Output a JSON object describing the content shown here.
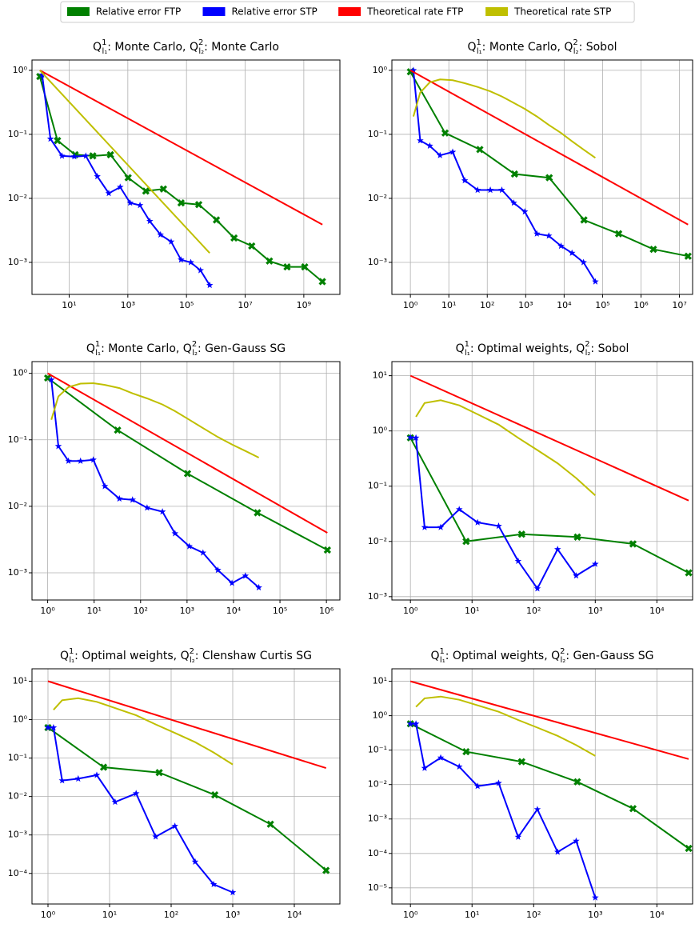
{
  "legend": {
    "position": "upper center",
    "entries": [
      {
        "name": "Relative error FTP",
        "color": "#008000"
      },
      {
        "name": "Relative error STP",
        "color": "#0000ff"
      },
      {
        "name": "Theoretical rate FTP",
        "color": "#ff0000"
      },
      {
        "name": "Theoretical rate STP",
        "color": "#bfbf00"
      }
    ]
  },
  "chart_data": [
    {
      "type": "line",
      "xscale": "log",
      "yscale": "log",
      "grid": true,
      "title": [
        {
          "text": "Q"
        },
        {
          "sup": "1",
          "sub": "l₁"
        },
        {
          "text": ": Monte Carlo, "
        },
        {
          "text": "Q"
        },
        {
          "sup": "2",
          "sub": "l₂"
        },
        {
          "text": ": Monte Carlo"
        }
      ],
      "xlim": [
        0.54,
        17000000000
      ],
      "ylim": [
        0.000316,
        1.45
      ],
      "xticks": [
        {
          "value": 10,
          "label": "10¹"
        },
        {
          "value": 1000,
          "label": "10³"
        },
        {
          "value": 100000,
          "label": "10⁵"
        },
        {
          "value": 10000000,
          "label": "10⁷"
        },
        {
          "value": 1000000000,
          "label": "10⁹"
        }
      ],
      "yticks": [
        {
          "value": 1,
          "label": "10⁰"
        },
        {
          "value": 0.1,
          "label": "10⁻¹"
        },
        {
          "value": 0.01,
          "label": "10⁻²"
        },
        {
          "value": 0.001,
          "label": "10⁻³"
        }
      ],
      "series": [
        {
          "marker": "X",
          "x": [
            1,
            4,
            16,
            64,
            256,
            1024,
            4096,
            16384,
            65536,
            262144,
            1048576,
            4194304,
            16777216,
            67108864,
            268435456,
            1073741824,
            4294967296
          ],
          "values": [
            0.8,
            0.08,
            0.048,
            0.046,
            0.048,
            0.021,
            0.013,
            0.014,
            0.0085,
            0.008,
            0.0046,
            0.0024,
            0.0018,
            0.00105,
            0.00085,
            0.00085,
            0.0005
          ]
        },
        {
          "marker": "*",
          "x": [
            1.2,
            2.3,
            5.7,
            15,
            37,
            91,
            224,
            550,
            1200,
            2600,
            5600,
            13000,
            30000,
            65000,
            140000,
            300000,
            620000
          ],
          "values": [
            0.85,
            0.085,
            0.046,
            0.045,
            0.046,
            0.022,
            0.012,
            0.015,
            0.0085,
            0.0078,
            0.0044,
            0.0027,
            0.0021,
            0.0011,
            0.001,
            0.00075,
            0.00044
          ]
        },
        {
          "x": [
            1,
            4294967296
          ],
          "values": [
            1,
            0.0039
          ]
        },
        {
          "x": [
            1,
            620000
          ],
          "values": [
            1,
            0.0014
          ]
        }
      ]
    },
    {
      "type": "line",
      "xscale": "log",
      "yscale": "log",
      "grid": true,
      "title": [
        {
          "text": "Q"
        },
        {
          "sup": "1",
          "sub": "l₁"
        },
        {
          "text": ": Monte Carlo, "
        },
        {
          "text": "Q"
        },
        {
          "sup": "2",
          "sub": "l₂"
        },
        {
          "text": ": Sobol"
        }
      ],
      "xlim": [
        0.33,
        22000000
      ],
      "ylim": [
        0.000316,
        1.45
      ],
      "xticks": [
        {
          "value": 1,
          "label": "10⁰"
        },
        {
          "value": 10,
          "label": "10¹"
        },
        {
          "value": 100,
          "label": "10²"
        },
        {
          "value": 1000,
          "label": "10³"
        },
        {
          "value": 10000,
          "label": "10⁴"
        },
        {
          "value": 100000,
          "label": "10⁵"
        },
        {
          "value": 1000000,
          "label": "10⁶"
        },
        {
          "value": 10000000,
          "label": "10⁷"
        }
      ],
      "yticks": [
        {
          "value": 1,
          "label": "10⁰"
        },
        {
          "value": 0.1,
          "label": "10⁻¹"
        },
        {
          "value": 0.01,
          "label": "10⁻²"
        },
        {
          "value": 0.001,
          "label": "10⁻³"
        }
      ],
      "series": [
        {
          "marker": "X",
          "x": [
            1,
            8,
            64,
            512,
            4096,
            32768,
            262144,
            2097152,
            16777216
          ],
          "values": [
            0.95,
            0.105,
            0.058,
            0.024,
            0.021,
            0.0046,
            0.0028,
            0.0016,
            0.00125
          ]
        },
        {
          "marker": "*",
          "x": [
            1.2,
            1.8,
            3.2,
            5.9,
            12.6,
            26,
            56,
            120,
            240,
            490,
            950,
            1950,
            4000,
            8300,
            16000,
            32000,
            65000
          ],
          "values": [
            1.0,
            0.08,
            0.066,
            0.047,
            0.053,
            0.019,
            0.0135,
            0.0135,
            0.0135,
            0.0085,
            0.0062,
            0.0028,
            0.0026,
            0.0018,
            0.0014,
            0.001,
            0.0005
          ]
        },
        {
          "x": [
            1,
            16777216
          ],
          "values": [
            1,
            0.0039
          ]
        },
        {
          "x": [
            1.2,
            1.8,
            3.2,
            5.9,
            12.6,
            26,
            56,
            120,
            240,
            490,
            950,
            1950,
            4000,
            8300,
            16000,
            32000,
            65000
          ],
          "values": [
            0.19,
            0.45,
            0.65,
            0.72,
            0.7,
            0.63,
            0.55,
            0.47,
            0.39,
            0.31,
            0.25,
            0.19,
            0.14,
            0.105,
            0.078,
            0.058,
            0.043
          ]
        }
      ]
    },
    {
      "type": "line",
      "xscale": "log",
      "yscale": "log",
      "grid": true,
      "title": [
        {
          "text": "Q"
        },
        {
          "sup": "1",
          "sub": "l₁"
        },
        {
          "text": ": Monte Carlo, "
        },
        {
          "text": "Q"
        },
        {
          "sup": "2",
          "sub": "l₂"
        },
        {
          "text": ": Gen-Gauss SG"
        }
      ],
      "xlim": [
        0.46,
        1950000
      ],
      "ylim": [
        0.00039,
        1.5
      ],
      "xticks": [
        {
          "value": 1,
          "label": "10⁰"
        },
        {
          "value": 10,
          "label": "10¹"
        },
        {
          "value": 100,
          "label": "10²"
        },
        {
          "value": 1000,
          "label": "10³"
        },
        {
          "value": 10000,
          "label": "10⁴"
        },
        {
          "value": 100000,
          "label": "10⁵"
        },
        {
          "value": 1000000,
          "label": "10⁶"
        }
      ],
      "yticks": [
        {
          "value": 1,
          "label": "10⁰"
        },
        {
          "value": 0.1,
          "label": "10⁻¹"
        },
        {
          "value": 0.01,
          "label": "10⁻²"
        },
        {
          "value": 0.001,
          "label": "10⁻³"
        }
      ],
      "series": [
        {
          "marker": "X",
          "x": [
            1,
            32,
            1024,
            32768,
            1048576
          ],
          "values": [
            0.85,
            0.14,
            0.031,
            0.008,
            0.0022
          ]
        },
        {
          "marker": "*",
          "x": [
            1.2,
            1.7,
            2.8,
            5.1,
            9.6,
            17,
            35,
            67,
            138,
            295,
            550,
            1120,
            2200,
            4600,
            9300,
            18000,
            35000
          ],
          "values": [
            0.8,
            0.08,
            0.048,
            0.048,
            0.05,
            0.02,
            0.013,
            0.0125,
            0.0095,
            0.0083,
            0.0039,
            0.0025,
            0.002,
            0.0011,
            0.0007,
            0.0009,
            0.0006
          ]
        },
        {
          "x": [
            1,
            1048576
          ],
          "values": [
            1,
            0.004
          ]
        },
        {
          "x": [
            1.2,
            1.7,
            2.8,
            5.1,
            9.6,
            17,
            35,
            67,
            138,
            295,
            550,
            1120,
            2200,
            4600,
            9300,
            18000,
            35000
          ],
          "values": [
            0.2,
            0.45,
            0.62,
            0.7,
            0.71,
            0.67,
            0.6,
            0.5,
            0.42,
            0.34,
            0.27,
            0.2,
            0.15,
            0.11,
            0.085,
            0.068,
            0.054
          ]
        }
      ]
    },
    {
      "type": "line",
      "xscale": "log",
      "yscale": "log",
      "grid": true,
      "title": [
        {
          "text": "Q"
        },
        {
          "sup": "1",
          "sub": "l₁"
        },
        {
          "text": ": Optimal weights, "
        },
        {
          "text": "Q"
        },
        {
          "sup": "2",
          "sub": "l₂"
        },
        {
          "text": ": Sobol"
        }
      ],
      "xlim": [
        0.5,
        38000
      ],
      "ylim": [
        0.00087,
        18
      ],
      "xticks": [
        {
          "value": 1,
          "label": "10⁰"
        },
        {
          "value": 10,
          "label": "10¹"
        },
        {
          "value": 100,
          "label": "10²"
        },
        {
          "value": 1000,
          "label": "10³"
        },
        {
          "value": 10000,
          "label": "10⁴"
        }
      ],
      "yticks": [
        {
          "value": 10,
          "label": "10¹"
        },
        {
          "value": 1,
          "label": "10⁰"
        },
        {
          "value": 0.1,
          "label": "10⁻¹"
        },
        {
          "value": 0.01,
          "label": "10⁻²"
        },
        {
          "value": 0.001,
          "label": "10⁻³"
        }
      ],
      "series": [
        {
          "marker": "X",
          "x": [
            1,
            8,
            64,
            512,
            4096,
            32768
          ],
          "values": [
            0.75,
            0.01,
            0.0135,
            0.012,
            0.009,
            0.0027
          ]
        },
        {
          "marker": "*",
          "x": [
            1,
            1.23,
            1.7,
            3.1,
            6.2,
            12.3,
            27,
            56,
            115,
            245,
            490,
            1000
          ],
          "values": [
            0.76,
            0.75,
            0.018,
            0.018,
            0.038,
            0.022,
            0.019,
            0.0044,
            0.0014,
            0.0072,
            0.0024,
            0.0039
          ]
        },
        {
          "x": [
            1,
            32768
          ],
          "values": [
            10,
            0.055
          ]
        },
        {
          "x": [
            1.23,
            1.7,
            3.1,
            6.2,
            12.3,
            27,
            56,
            115,
            245,
            490,
            1000
          ],
          "values": [
            1.8,
            3.2,
            3.6,
            2.9,
            2.0,
            1.3,
            0.75,
            0.45,
            0.26,
            0.14,
            0.068
          ]
        }
      ]
    },
    {
      "type": "line",
      "xscale": "log",
      "yscale": "log",
      "grid": true,
      "title": [
        {
          "text": "Q"
        },
        {
          "sup": "1",
          "sub": "l₁"
        },
        {
          "text": ": Optimal weights, "
        },
        {
          "text": "Q"
        },
        {
          "sup": "2",
          "sub": "l₂"
        },
        {
          "text": ": Clenshaw Curtis SG"
        }
      ],
      "xlim": [
        0.55,
        55000
      ],
      "ylim": [
        1.6e-05,
        21
      ],
      "xticks": [
        {
          "value": 1,
          "label": "10⁰"
        },
        {
          "value": 10,
          "label": "10¹"
        },
        {
          "value": 100,
          "label": "10²"
        },
        {
          "value": 1000,
          "label": "10³"
        },
        {
          "value": 10000,
          "label": "10⁴"
        }
      ],
      "yticks": [
        {
          "value": 10,
          "label": "10¹"
        },
        {
          "value": 1,
          "label": "10⁰"
        },
        {
          "value": 0.1,
          "label": "10⁻¹"
        },
        {
          "value": 0.01,
          "label": "10⁻²"
        },
        {
          "value": 0.001,
          "label": "10⁻³"
        },
        {
          "value": 0.0001,
          "label": "10⁻⁴"
        }
      ],
      "series": [
        {
          "marker": "X",
          "x": [
            1,
            8,
            64,
            512,
            4096,
            32768
          ],
          "values": [
            0.62,
            0.058,
            0.042,
            0.011,
            0.0019,
            0.00012
          ]
        },
        {
          "marker": "*",
          "x": [
            1,
            1.23,
            1.7,
            3.1,
            6.2,
            12.3,
            27,
            56,
            115,
            245,
            490,
            1000
          ],
          "values": [
            0.62,
            0.62,
            0.026,
            0.029,
            0.036,
            0.0072,
            0.012,
            0.0009,
            0.0017,
            0.0002,
            5.2e-05,
            3.2e-05
          ]
        },
        {
          "x": [
            1,
            32768
          ],
          "values": [
            10,
            0.055
          ]
        },
        {
          "x": [
            1.23,
            1.7,
            3.1,
            6.2,
            12.3,
            27,
            56,
            115,
            245,
            490,
            1000
          ],
          "values": [
            1.8,
            3.2,
            3.6,
            2.9,
            2.0,
            1.3,
            0.75,
            0.45,
            0.26,
            0.14,
            0.068
          ]
        }
      ]
    },
    {
      "type": "line",
      "xscale": "log",
      "yscale": "log",
      "grid": true,
      "title": [
        {
          "text": "Q"
        },
        {
          "sup": "1",
          "sub": "l₁"
        },
        {
          "text": ": Optimal weights, "
        },
        {
          "text": "Q"
        },
        {
          "sup": "2",
          "sub": "l₂"
        },
        {
          "text": ": Gen-Gauss SG"
        }
      ],
      "xlim": [
        0.5,
        38000
      ],
      "ylim": [
        3.4e-06,
        23
      ],
      "xticks": [
        {
          "value": 1,
          "label": "10⁰"
        },
        {
          "value": 10,
          "label": "10¹"
        },
        {
          "value": 100,
          "label": "10²"
        },
        {
          "value": 1000,
          "label": "10³"
        },
        {
          "value": 10000,
          "label": "10⁴"
        }
      ],
      "yticks": [
        {
          "value": 10,
          "label": "10¹"
        },
        {
          "value": 1,
          "label": "10⁰"
        },
        {
          "value": 0.1,
          "label": "10⁻¹"
        },
        {
          "value": 0.01,
          "label": "10⁻²"
        },
        {
          "value": 0.001,
          "label": "10⁻³"
        },
        {
          "value": 0.0001,
          "label": "10⁻⁴"
        },
        {
          "value": 1e-05,
          "label": "10⁻⁵"
        }
      ],
      "series": [
        {
          "marker": "X",
          "x": [
            1,
            8,
            64,
            512,
            4096,
            32768
          ],
          "values": [
            0.58,
            0.09,
            0.046,
            0.012,
            0.002,
            0.00014
          ]
        },
        {
          "marker": "*",
          "x": [
            1,
            1.23,
            1.7,
            3.1,
            6.2,
            12.3,
            27,
            56,
            115,
            245,
            490,
            1000
          ],
          "values": [
            0.58,
            0.58,
            0.03,
            0.06,
            0.033,
            0.009,
            0.011,
            0.0003,
            0.0019,
            0.00011,
            0.00023,
            5.2e-06
          ]
        },
        {
          "x": [
            1,
            32768
          ],
          "values": [
            10,
            0.055
          ]
        },
        {
          "x": [
            1.23,
            1.7,
            3.1,
            6.2,
            12.3,
            27,
            56,
            115,
            245,
            490,
            1000
          ],
          "values": [
            1.8,
            3.2,
            3.6,
            2.9,
            2.0,
            1.3,
            0.75,
            0.45,
            0.26,
            0.14,
            0.068
          ]
        }
      ]
    }
  ]
}
